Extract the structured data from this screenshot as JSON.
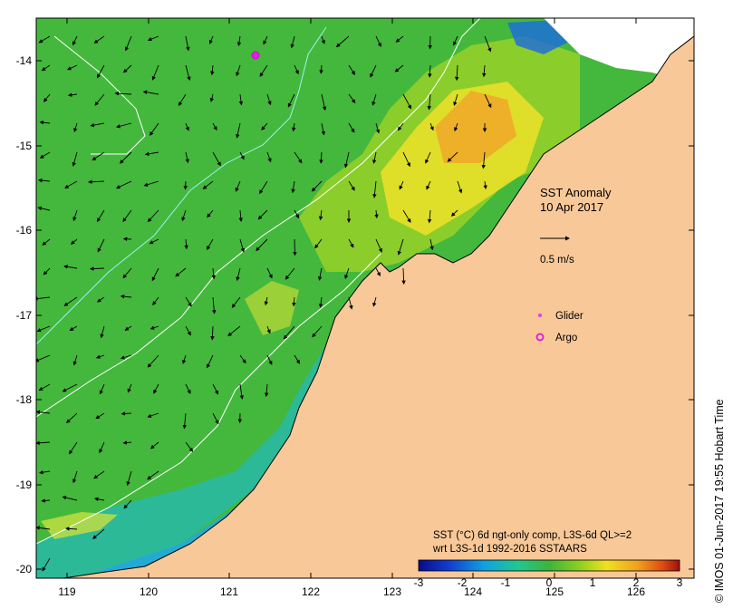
{
  "map": {
    "title_line1": "SST Anomaly",
    "title_line2": "10 Apr 2017",
    "arrow_scale_label": "0.5 m/s",
    "legend": {
      "glider_label": "Glider",
      "argo_label": "Argo",
      "glider_color": "#e040e0",
      "argo_color": "#e020e0"
    },
    "description_line1": "SST (°C) 6d ngt-only comp, L3S-6d QL>=2",
    "description_line2": "wrt L3S-1d 1992-2016 SSTAARS",
    "colorbar": {
      "ticks": [
        "-3",
        "-2",
        "-1",
        "0",
        "1",
        "2",
        "3"
      ],
      "min": -3,
      "max": 3,
      "colors": [
        "#0a0a8c",
        "#1040d0",
        "#10a0e0",
        "#20c890",
        "#3cb43c",
        "#90d020",
        "#f0e020",
        "#f0a020",
        "#e05010",
        "#a01010"
      ]
    },
    "y_ticks": [
      "-14",
      "-15",
      "-16",
      "-17",
      "-18",
      "-19",
      "-20"
    ],
    "x_ticks": [
      "119",
      "120",
      "121",
      "122",
      "123",
      "124",
      "125",
      "126"
    ],
    "credit": "© IMOS 01-Jun-2017 19:55 Hobart Time",
    "land_color": "#f8c898",
    "ocean_color": "#44b83c",
    "argo_float": {
      "lon": 121.3,
      "lat": -13.95
    }
  }
}
